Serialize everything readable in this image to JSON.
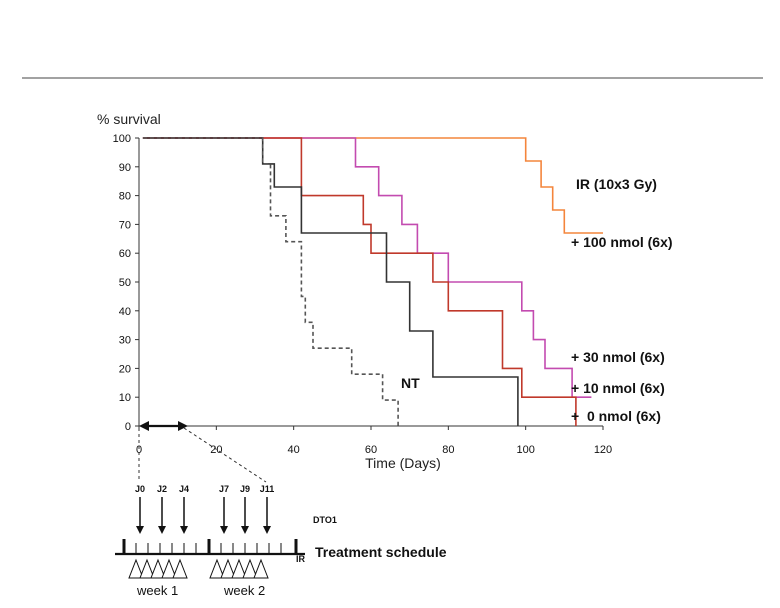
{
  "chart_data": {
    "type": "line",
    "step": true,
    "ylabel": "% survival",
    "xlabel": "Time (Days)",
    "xlim": [
      0,
      120
    ],
    "ylim": [
      0,
      100
    ],
    "xticks": [
      0,
      20,
      40,
      60,
      80,
      100,
      120
    ],
    "yticks": [
      0,
      10,
      20,
      30,
      40,
      50,
      60,
      70,
      80,
      90,
      100
    ],
    "series": [
      {
        "name": "IR (10x3 Gy)",
        "color": "#f4853c",
        "dash": false,
        "x": [
          1,
          100,
          100,
          104,
          104,
          107,
          107,
          110,
          110,
          120
        ],
        "y": [
          100,
          100,
          92,
          92,
          83,
          83,
          75,
          75,
          67,
          67
        ]
      },
      {
        "name": "+ 100 nmol (6x)",
        "color": "#c34bb0",
        "dash": false,
        "x": [
          1,
          56,
          56,
          62,
          62,
          68,
          68,
          72,
          72,
          80,
          80,
          87,
          87,
          99,
          99,
          102,
          102,
          105,
          105,
          112,
          112,
          114,
          114,
          117
        ],
        "y": [
          100,
          100,
          90,
          90,
          80,
          80,
          70,
          70,
          60,
          60,
          50,
          50,
          50,
          50,
          40,
          40,
          30,
          30,
          20,
          20,
          10,
          10,
          10,
          10
        ]
      },
      {
        "name": "+ 30 nmol (6x)",
        "color": "#c0392b",
        "dash": false,
        "x": [
          1,
          42,
          42,
          58,
          58,
          60,
          60,
          61,
          61,
          76,
          76,
          80,
          80,
          87,
          87,
          94,
          94,
          99,
          99,
          107,
          107,
          113,
          113
        ],
        "y": [
          100,
          100,
          80,
          80,
          70,
          70,
          60,
          60,
          60,
          60,
          50,
          50,
          40,
          40,
          40,
          40,
          20,
          20,
          10,
          10,
          10,
          10,
          0
        ]
      },
      {
        "name": "+ 0 nmol (6x)",
        "color": "#333333",
        "dash": false,
        "x": [
          1,
          32,
          32,
          35,
          35,
          40,
          40,
          42,
          42,
          64,
          64,
          67,
          67,
          70,
          70,
          76,
          76,
          98,
          98
        ],
        "y": [
          100,
          100,
          91,
          91,
          83,
          83,
          83,
          83,
          67,
          67,
          50,
          50,
          50,
          50,
          33,
          33,
          17,
          17,
          0
        ]
      },
      {
        "name": "NT",
        "color": "#555555",
        "dash": true,
        "x": [
          1,
          32,
          32,
          34,
          34,
          38,
          38,
          42,
          42,
          43,
          43,
          45,
          45,
          55,
          55,
          63,
          63,
          67,
          67
        ],
        "y": [
          100,
          100,
          91,
          91,
          73,
          73,
          64,
          64,
          45,
          45,
          36,
          36,
          27,
          27,
          18,
          18,
          9,
          9,
          0
        ]
      }
    ],
    "annotations": [
      "IR (10x3 Gy)",
      "+ 100 nmol (6x)",
      "+ 30 nmol (6x)",
      "+ 10 nmol (6x)",
      "+  0 nmol (6x)",
      "NT"
    ]
  },
  "schedule": {
    "days": [
      "J0",
      "J2",
      "J4",
      "J7",
      "J9",
      "J11"
    ],
    "drug_label": "DTO1",
    "ir_label": "IR",
    "title": "Treatment schedule",
    "weeks": [
      "week 1",
      "week 2"
    ]
  }
}
